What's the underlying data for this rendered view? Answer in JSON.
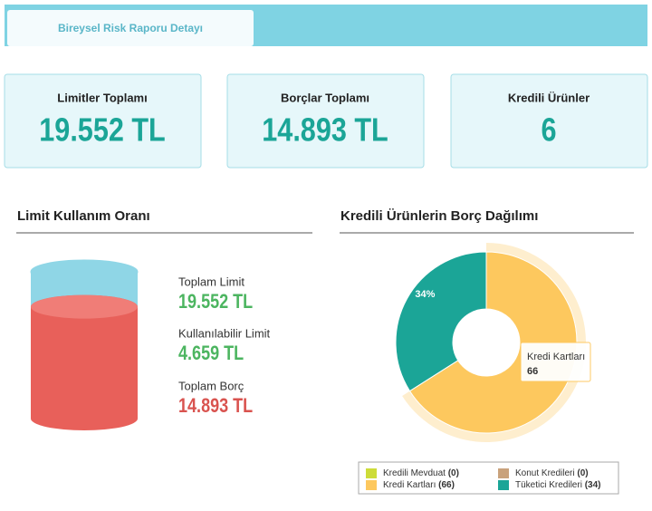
{
  "tab": "Bireysel Risk Raporu Detayı",
  "cards": [
    {
      "title": "Limitler Toplamı",
      "value": "19.552 TL"
    },
    {
      "title": "Borçlar Toplamı",
      "value": "14.893 TL"
    },
    {
      "title": "Kredili Ürünler",
      "value": "6"
    }
  ],
  "limit_usage": {
    "title": "Limit Kullanım Oranı",
    "labels": [
      "Toplam Limit",
      "Kullanılabilir Limit",
      "Toplam Borç"
    ],
    "values": [
      19552,
      4659,
      14893
    ],
    "value_labels": [
      "19.552 TL",
      "4.659 TL",
      "14.893 TL"
    ],
    "colors": [
      "#8fd6e6",
      "#8fd6e6",
      "#e8605a"
    ]
  },
  "chart_data": {
    "type": "pie",
    "title": "Kredili Ürünlerin Borç Dağılımı",
    "categories": [
      "Kredili Mevduat",
      "Konut Kredileri",
      "Kredi Kartları",
      "Tüketici Kredileri"
    ],
    "values": [
      0,
      0,
      66,
      34
    ],
    "value_labels": [
      "(0)",
      "(0)",
      "(66)",
      "(34)"
    ],
    "colors": [
      "#cddc39",
      "#c9a27c",
      "#fdc85e",
      "#1ba597"
    ],
    "annotations": [
      "34%"
    ],
    "tooltip": {
      "title": "Kredi Kartları",
      "value": "66"
    }
  }
}
